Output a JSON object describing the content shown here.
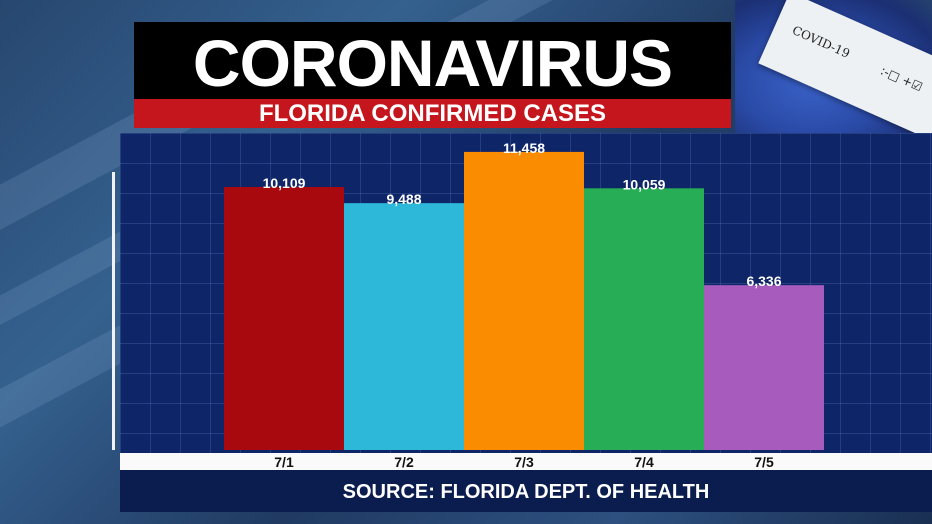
{
  "header": {
    "title": "CORONAVIRUS",
    "subtitle": "FLORIDA CONFIRMED CASES"
  },
  "background": {
    "test_tube_label": "COVID-19",
    "test_tube_marks": ":-□ +☑"
  },
  "footer": {
    "source": "SOURCE: FLORIDA DEPT. OF HEALTH"
  },
  "colors": {
    "title_background": "#000000",
    "subtitle_bar": "#c4161c",
    "chart_background": "#0e2568",
    "source_bar": "#0b1d4e"
  },
  "chart_data": {
    "type": "bar",
    "categories": [
      "7/1",
      "7/2",
      "7/3",
      "7/4",
      "7/5"
    ],
    "values": [
      10109,
      9488,
      11458,
      10059,
      6336
    ],
    "value_labels": [
      "10,109",
      "9,488",
      "11,458",
      "10,059",
      "6,336"
    ],
    "bar_colors": [
      "#a8090e",
      "#2db8da",
      "#f98c00",
      "#26ad55",
      "#a65bbd"
    ],
    "ylim": [
      0,
      11800
    ],
    "grid": true,
    "legend": "none"
  }
}
